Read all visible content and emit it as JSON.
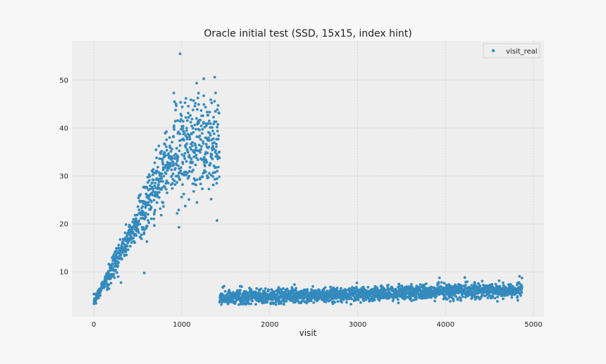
{
  "chart_data": {
    "type": "scatter",
    "title": "Oracle initial test (SSD, 15x15, index hint)",
    "xlabel": "visit",
    "ylabel": "",
    "xlim": [
      -250,
      5120
    ],
    "ylim": [
      0.6,
      58.2
    ],
    "xticks": [
      "0",
      "1000",
      "2000",
      "3000",
      "4000",
      "5000"
    ],
    "yticks": [
      "10",
      "20",
      "30",
      "40",
      "50"
    ],
    "grid": true,
    "legend": {
      "position": "top-right"
    },
    "series": [
      {
        "name": "visit_real",
        "color": "#348abd",
        "marker": "dot",
        "x_range": [
          0,
          4870
        ],
        "description_points": [
          {
            "x": 0,
            "y": 3.7
          },
          {
            "x": 100,
            "y": 6.5
          },
          {
            "x": 200,
            "y": 11
          },
          {
            "x": 300,
            "y": 13
          },
          {
            "x": 400,
            "y": 17
          },
          {
            "x": 500,
            "y": 21
          },
          {
            "x": 600,
            "y": 25
          },
          {
            "x": 700,
            "y": 29
          },
          {
            "x": 800,
            "y": 33
          },
          {
            "x": 900,
            "y": 35
          },
          {
            "x": 1000,
            "y": 37
          },
          {
            "x": 1100,
            "y": 36
          },
          {
            "x": 1200,
            "y": 36
          },
          {
            "x": 1300,
            "y": 36
          },
          {
            "x": 1400,
            "y": 36
          },
          {
            "x": 1450,
            "y": 4.6
          },
          {
            "x": 2000,
            "y": 4.8
          },
          {
            "x": 2500,
            "y": 5.0
          },
          {
            "x": 3000,
            "y": 5.4
          },
          {
            "x": 3500,
            "y": 5.6
          },
          {
            "x": 4000,
            "y": 5.8
          },
          {
            "x": 4500,
            "y": 6.1
          },
          {
            "x": 4870,
            "y": 6.3
          }
        ],
        "outliers": [
          {
            "x": 980,
            "y": 55.5
          },
          {
            "x": 1250,
            "y": 50.3
          },
          {
            "x": 1400,
            "y": 20.7
          },
          {
            "x": 4870,
            "y": 8.7
          }
        ]
      }
    ]
  }
}
